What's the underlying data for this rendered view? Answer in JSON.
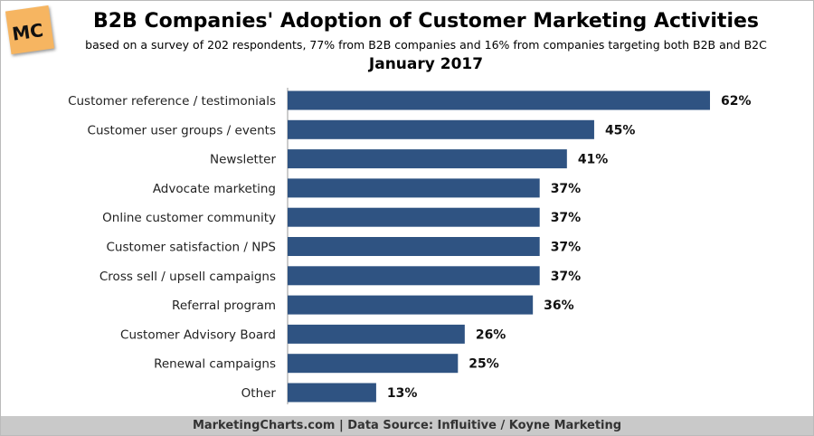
{
  "logo": "MC",
  "chart_data": {
    "type": "bar",
    "orientation": "horizontal",
    "title": "B2B Companies' Adoption of Customer Marketing Activities",
    "subtitle": "based on a survey of 202 respondents, 77% from B2B companies and 16% from companies targeting both B2B and B2C",
    "date": "January 2017",
    "categories": [
      "Customer reference / testimonials",
      "Customer user groups / events",
      "Newsletter",
      "Advocate marketing",
      "Online customer community",
      "Customer satisfaction / NPS",
      "Cross sell / upsell campaigns",
      "Referral program",
      "Customer Advisory Board",
      "Renewal campaigns",
      "Other"
    ],
    "values": [
      62,
      45,
      41,
      37,
      37,
      37,
      37,
      36,
      26,
      25,
      13
    ],
    "value_suffix": "%",
    "bar_color": "#2f5382",
    "grid": false
  },
  "footer": "MarketingCharts.com | Data Source: Influitive / Koyne Marketing"
}
